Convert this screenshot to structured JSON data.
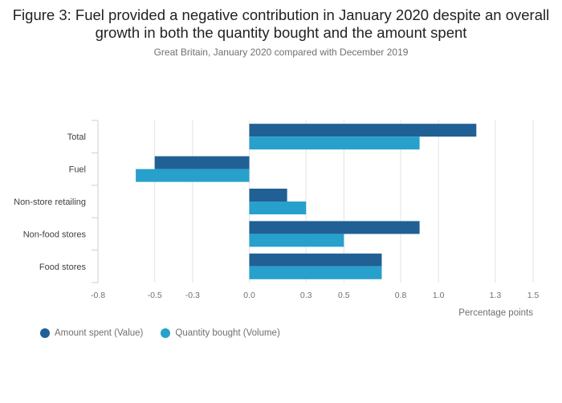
{
  "title": "Figure 3: Fuel provided a negative contribution in January 2020 despite an overall growth in both the quantity bought and the amount spent",
  "subtitle": "Great Britain, January 2020 compared with December 2019",
  "chart_data": {
    "type": "bar",
    "orientation": "horizontal",
    "categories": [
      "Total",
      "Fuel",
      "Non-store retailing",
      "Non-food stores",
      "Food stores"
    ],
    "series": [
      {
        "name": "Amount spent (Value)",
        "color": "#206095",
        "values": [
          1.2,
          -0.5,
          0.2,
          0.9,
          0.7
        ]
      },
      {
        "name": "Quantity bought (Volume)",
        "color": "#27a0cc",
        "values": [
          0.9,
          -0.6,
          0.3,
          0.5,
          0.7
        ]
      }
    ],
    "xlim": [
      -0.8,
      1.5
    ],
    "xticks": [
      -0.8,
      -0.5,
      -0.3,
      0.0,
      0.3,
      0.5,
      0.8,
      1.0,
      1.3,
      1.5
    ],
    "xtick_labels": [
      "-0.8",
      "-0.5",
      "-0.3",
      "0.0",
      "0.3",
      "0.5",
      "0.8",
      "1.0",
      "1.3",
      "1.5"
    ],
    "xlabel": "Percentage points",
    "legend_position": "bottom-left"
  }
}
